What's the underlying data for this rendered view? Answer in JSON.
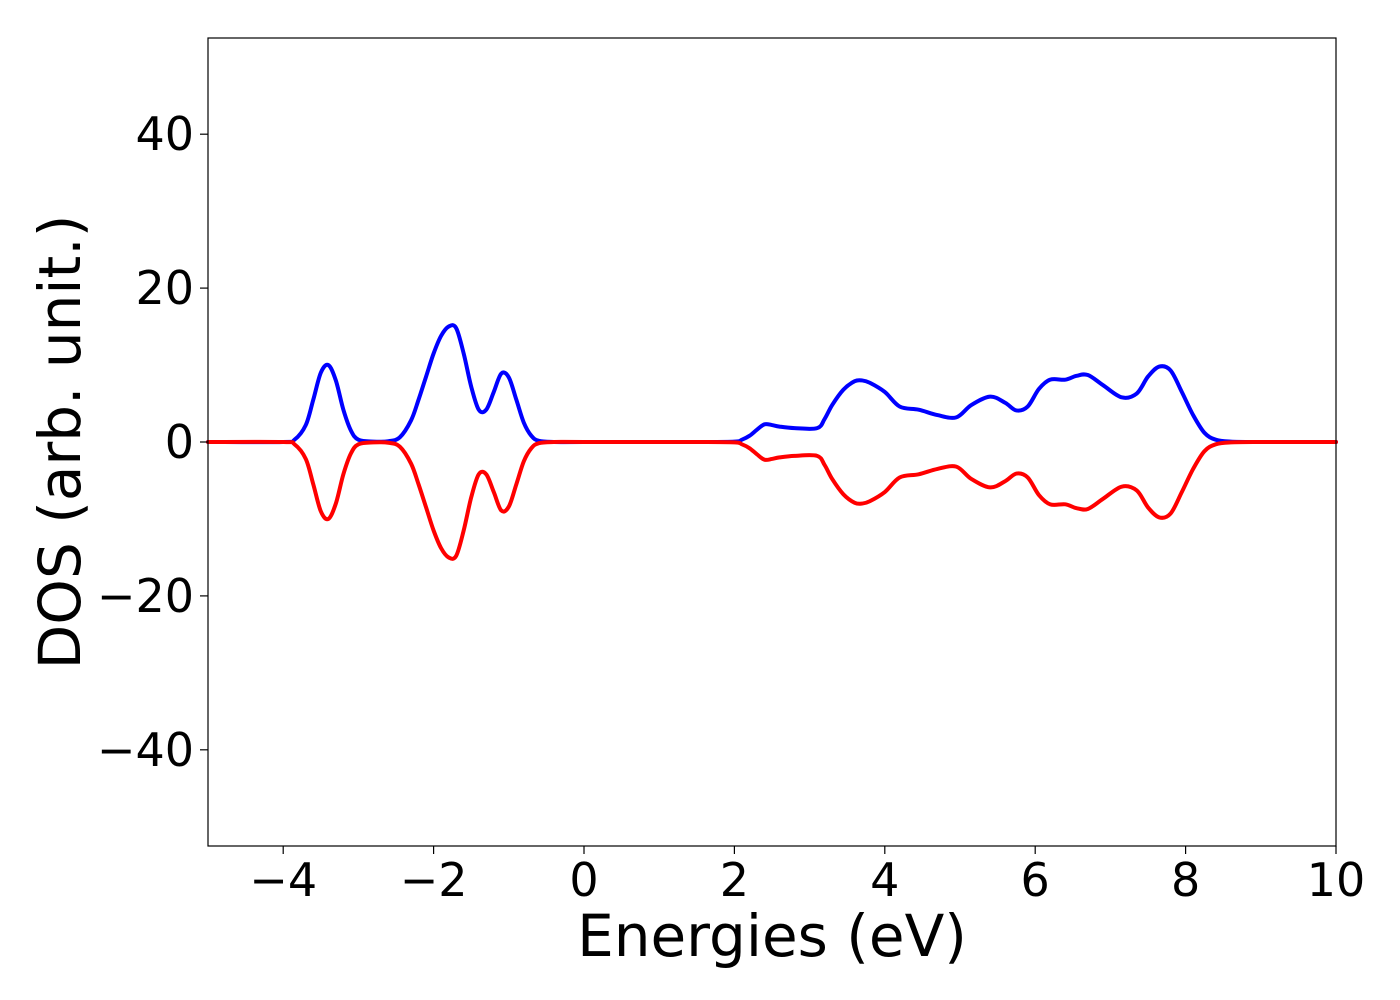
{
  "chart_data": {
    "type": "line",
    "title": "",
    "xlabel": "Energies (eV)",
    "ylabel": "DOS (arb. unit.)",
    "xlim": [
      -5,
      10
    ],
    "ylim": [
      -52.5,
      52.5
    ],
    "xticks": [
      -4,
      -2,
      0,
      2,
      4,
      6,
      8,
      10
    ],
    "xtick_labels": [
      "−4",
      "−2",
      "0",
      "2",
      "4",
      "6",
      "8",
      "10"
    ],
    "yticks": [
      -40,
      -20,
      0,
      20,
      40
    ],
    "ytick_labels": [
      "−40",
      "−20",
      "0",
      "20",
      "40"
    ],
    "grid": false,
    "legend": "none",
    "series": [
      {
        "color": "#0000ff",
        "x": [
          -5.0,
          -4.0,
          -3.85,
          -3.7,
          -3.6,
          -3.5,
          -3.4,
          -3.3,
          -3.2,
          -3.1,
          -3.0,
          -2.8,
          -2.6,
          -2.45,
          -2.3,
          -2.2,
          -2.1,
          -2.0,
          -1.9,
          -1.8,
          -1.7,
          -1.6,
          -1.5,
          -1.4,
          -1.3,
          -1.2,
          -1.1,
          -1.0,
          -0.9,
          -0.8,
          -0.7,
          -0.6,
          -0.4,
          0.0,
          1.5,
          2.0,
          2.1,
          2.2,
          2.3,
          2.4,
          2.5,
          2.6,
          2.8,
          3.1,
          3.2,
          3.3,
          3.45,
          3.6,
          3.7,
          3.8,
          4.0,
          4.2,
          4.45,
          4.7,
          4.95,
          5.15,
          5.4,
          5.6,
          5.75,
          5.9,
          6.05,
          6.2,
          6.4,
          6.55,
          6.7,
          6.9,
          7.15,
          7.35,
          7.5,
          7.65,
          7.8,
          7.95,
          8.1,
          8.25,
          8.4,
          8.6,
          9.0,
          10.0
        ],
        "y": [
          0,
          0,
          0.3,
          2.2,
          5.5,
          9.0,
          10.0,
          8.0,
          4.2,
          1.5,
          0.3,
          0.05,
          0.1,
          0.6,
          2.8,
          5.5,
          8.5,
          11.5,
          13.8,
          15.0,
          14.8,
          11.5,
          7.2,
          4.2,
          4.2,
          6.5,
          8.9,
          8.4,
          5.5,
          2.5,
          0.8,
          0.15,
          0.0,
          0,
          0,
          0.05,
          0.3,
          0.8,
          1.6,
          2.3,
          2.2,
          2.0,
          1.8,
          1.8,
          3.0,
          4.8,
          6.8,
          7.9,
          8.0,
          7.7,
          6.5,
          4.6,
          4.2,
          3.5,
          3.2,
          4.8,
          5.9,
          5.1,
          4.1,
          4.6,
          6.9,
          8.1,
          8.1,
          8.6,
          8.7,
          7.4,
          5.8,
          6.3,
          8.5,
          9.8,
          9.3,
          6.5,
          3.5,
          1.2,
          0.3,
          0.05,
          0,
          0
        ]
      },
      {
        "color": "#ff0000",
        "x": [
          -5.0,
          -4.0,
          -3.85,
          -3.7,
          -3.6,
          -3.5,
          -3.4,
          -3.3,
          -3.2,
          -3.1,
          -3.0,
          -2.8,
          -2.6,
          -2.45,
          -2.3,
          -2.2,
          -2.1,
          -2.0,
          -1.9,
          -1.8,
          -1.7,
          -1.6,
          -1.5,
          -1.4,
          -1.3,
          -1.2,
          -1.1,
          -1.0,
          -0.9,
          -0.8,
          -0.7,
          -0.6,
          -0.4,
          0.0,
          1.5,
          2.0,
          2.1,
          2.2,
          2.3,
          2.4,
          2.5,
          2.6,
          2.8,
          3.1,
          3.2,
          3.3,
          3.45,
          3.6,
          3.7,
          3.8,
          4.0,
          4.2,
          4.45,
          4.7,
          4.95,
          5.15,
          5.4,
          5.6,
          5.75,
          5.9,
          6.05,
          6.2,
          6.4,
          6.55,
          6.7,
          6.9,
          7.15,
          7.35,
          7.5,
          7.65,
          7.8,
          7.95,
          8.1,
          8.25,
          8.4,
          8.6,
          9.0,
          10.0
        ],
        "y": [
          0,
          0,
          -0.3,
          -2.2,
          -5.5,
          -9.0,
          -10.0,
          -8.0,
          -4.2,
          -1.5,
          -0.3,
          -0.05,
          -0.1,
          -0.6,
          -2.8,
          -5.5,
          -8.5,
          -11.5,
          -13.8,
          -15.0,
          -14.8,
          -11.5,
          -7.2,
          -4.2,
          -4.2,
          -6.5,
          -8.9,
          -8.4,
          -5.5,
          -2.5,
          -0.8,
          -0.15,
          -0.0,
          0,
          0,
          -0.05,
          -0.3,
          -0.8,
          -1.6,
          -2.3,
          -2.2,
          -2.0,
          -1.8,
          -1.8,
          -3.0,
          -4.8,
          -6.8,
          -7.9,
          -8.0,
          -7.7,
          -6.5,
          -4.6,
          -4.2,
          -3.5,
          -3.2,
          -4.8,
          -5.9,
          -5.1,
          -4.1,
          -4.6,
          -6.9,
          -8.1,
          -8.1,
          -8.6,
          -8.7,
          -7.4,
          -5.8,
          -6.3,
          -8.5,
          -9.8,
          -9.3,
          -6.5,
          -3.5,
          -1.2,
          -0.3,
          -0.05,
          0,
          0
        ]
      }
    ]
  }
}
